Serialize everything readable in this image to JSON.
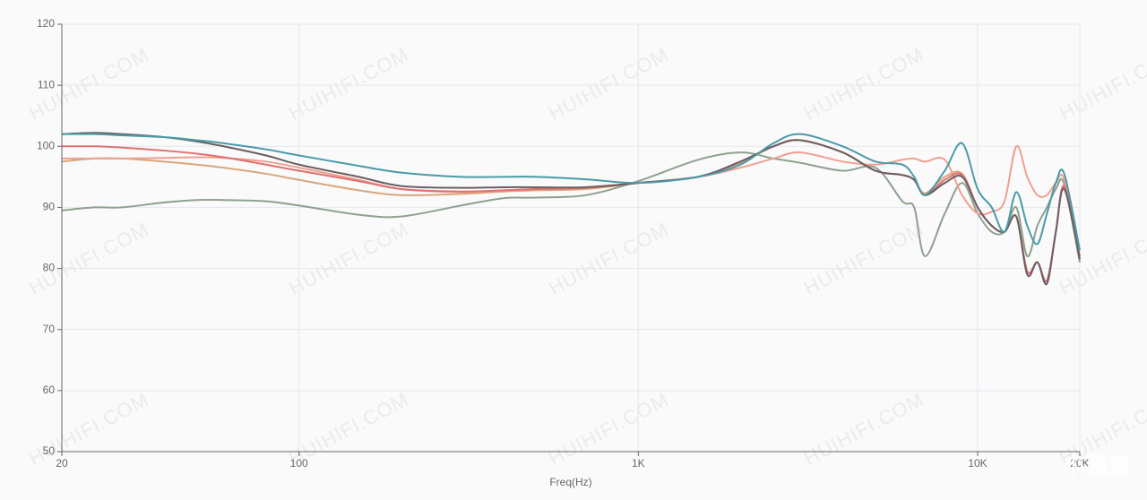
{
  "chart_data": {
    "type": "line",
    "x_label": "Freq(Hz)",
    "watermark": "HUIHIFI.COM",
    "logo": "小黑盒",
    "log_x": true,
    "grid": true,
    "xlim": [
      20,
      20000
    ],
    "ylim": [
      50,
      120
    ],
    "xticks": [
      20,
      100,
      {
        "value": 1000,
        "label": "1K"
      },
      {
        "value": 10000,
        "label": "10K"
      },
      {
        "value": 20000,
        "label": "20K"
      }
    ],
    "yticks": [
      50,
      60,
      70,
      80,
      90,
      100,
      110,
      120
    ],
    "x": [
      20,
      25,
      30,
      40,
      50,
      60,
      80,
      100,
      150,
      200,
      300,
      400,
      500,
      700,
      1000,
      1500,
      2000,
      2500,
      3000,
      4000,
      5000,
      6000,
      6500,
      7000,
      8000,
      9000,
      10000,
      11000,
      12000,
      13000,
      14000,
      15000,
      16000,
      17000,
      18000,
      20000
    ],
    "series": [
      {
        "color": "#8fa08f",
        "values": [
          89.5,
          90,
          90,
          90.8,
          91.2,
          91.2,
          91,
          90.3,
          88.8,
          88.5,
          90.3,
          91.5,
          91.6,
          92,
          94.3,
          97.8,
          99,
          98,
          97.3,
          96,
          96.5,
          91,
          90,
          82,
          89,
          94,
          89,
          86,
          86,
          90,
          82,
          87,
          90,
          93,
          93.8,
          81
        ]
      },
      {
        "color": "#dba67a",
        "values": [
          97.5,
          98,
          98,
          97.5,
          97,
          96.5,
          95.5,
          94.5,
          92.8,
          92,
          92.2,
          92.6,
          92.8,
          93,
          94,
          95,
          97.3,
          100,
          101,
          99,
          96,
          95.3,
          94.5,
          92.3,
          95,
          95.5,
          90,
          87,
          86,
          88.5,
          79.5,
          81,
          78,
          86,
          93.3,
          82
        ]
      },
      {
        "color": "#f0a090",
        "values": [
          98,
          98,
          98,
          98.1,
          98.2,
          98.1,
          97.5,
          96.5,
          94.5,
          93,
          92.5,
          92.7,
          93,
          93.3,
          94,
          95,
          96.5,
          98,
          99,
          97.5,
          97,
          97.8,
          98,
          97.5,
          97.8,
          92,
          89,
          89.3,
          91,
          100,
          95,
          92,
          92,
          94,
          94.5,
          82
        ]
      },
      {
        "color": "#e07070",
        "values": [
          100,
          100,
          99.8,
          99.3,
          98.8,
          98.2,
          97,
          96,
          94.3,
          93,
          92.6,
          92.8,
          93,
          93.2,
          94,
          95,
          97.5,
          100,
          101,
          99,
          96,
          95.3,
          94.5,
          92,
          94.5,
          95.3,
          90,
          87,
          86,
          88.5,
          79.5,
          81,
          78,
          86,
          93.5,
          82
        ]
      },
      {
        "color": "#6b5f63",
        "values": [
          102,
          102.2,
          102,
          101.5,
          100.8,
          100,
          98.5,
          97,
          95,
          93.5,
          93.2,
          93.3,
          93.3,
          93.3,
          94,
          95,
          97.5,
          100,
          101,
          99,
          96,
          95.3,
          94.5,
          92,
          94,
          95,
          90,
          87,
          86,
          88.5,
          79,
          81,
          77.5,
          86,
          93,
          81.5
        ]
      },
      {
        "color": "#4a9aa8",
        "values": [
          102,
          102,
          101.8,
          101.5,
          101,
          100.5,
          99.5,
          98.5,
          96.8,
          95.7,
          95,
          95,
          95,
          94.6,
          94,
          95,
          97,
          100.5,
          102,
          100,
          97.5,
          97,
          95,
          92,
          96,
          100.5,
          93,
          90,
          86,
          92.5,
          87,
          84,
          89,
          94,
          95.5,
          83
        ]
      }
    ]
  }
}
